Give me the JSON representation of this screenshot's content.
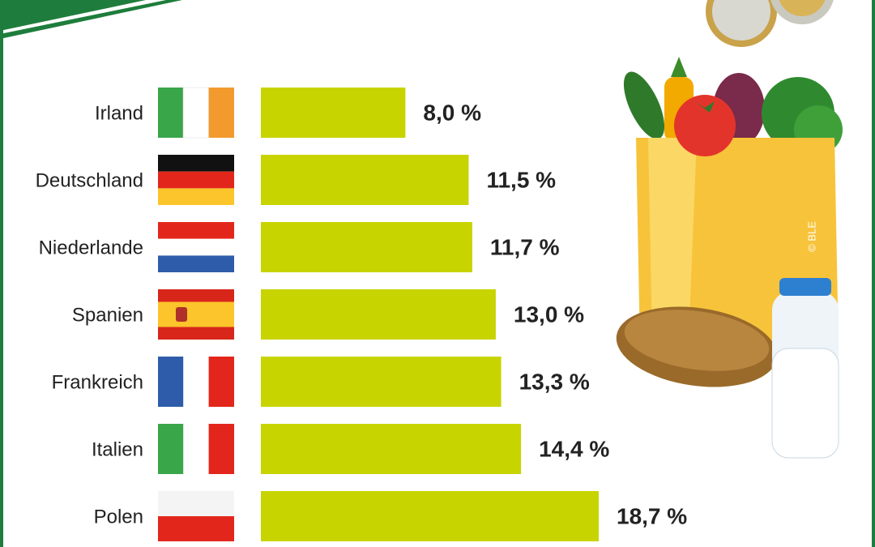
{
  "chart_data": {
    "type": "bar",
    "orientation": "horizontal",
    "categories": [
      "Irland",
      "Deutschland",
      "Niederlande",
      "Spanien",
      "Frankreich",
      "Italien",
      "Polen"
    ],
    "values": [
      8.0,
      11.5,
      11.7,
      13.0,
      13.3,
      14.4,
      18.7
    ],
    "value_labels": [
      "8,0 %",
      "11,5 %",
      "11,7 %",
      "13,0 %",
      "13,3 %",
      "14,4 %",
      "18,7 %"
    ],
    "color": "#c8d400",
    "copyright": "© BLE"
  }
}
